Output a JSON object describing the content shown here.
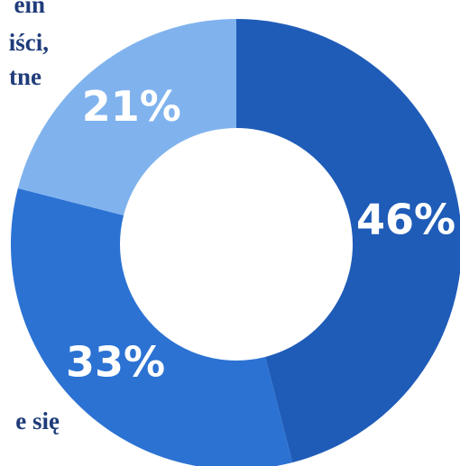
{
  "chart_data": {
    "type": "donut",
    "values": [
      46,
      33,
      21
    ],
    "value_labels": [
      "46%",
      "33%",
      "21%"
    ],
    "colors": [
      "#1f5cb8",
      "#2b72d3",
      "#80b3ee"
    ],
    "annotations": [
      "ein",
      "iści,",
      "tne",
      "e się"
    ]
  }
}
